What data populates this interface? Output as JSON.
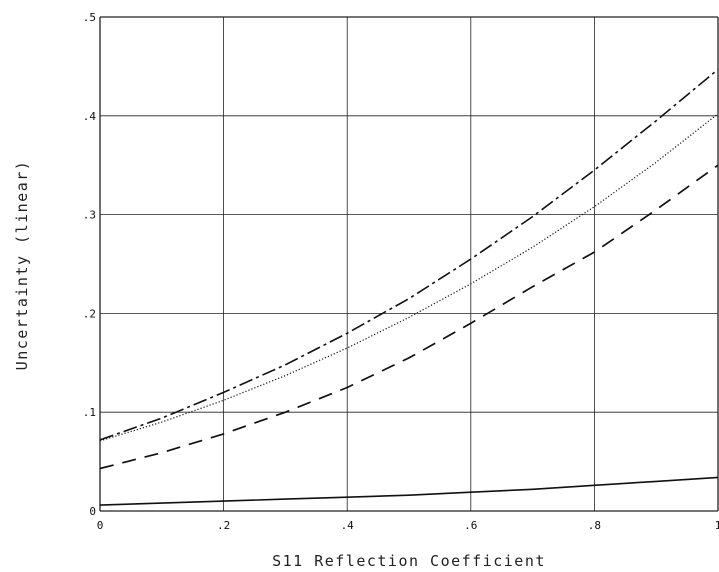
{
  "chart_data": {
    "type": "line",
    "title": "",
    "xlabel": "S11 Reflection Coefficient",
    "ylabel": "Uncertainty (linear)",
    "xlim": [
      0,
      1
    ],
    "ylim": [
      0,
      0.5
    ],
    "grid": true,
    "x_ticks": [
      "0",
      ".2",
      ".4",
      ".6",
      ".8",
      "1"
    ],
    "y_ticks": [
      "0",
      ".1",
      ".2",
      ".3",
      ".4",
      ".5"
    ],
    "x": [
      0,
      0.1,
      0.2,
      0.3,
      0.4,
      0.5,
      0.6,
      0.7,
      0.8,
      0.9,
      1.0
    ],
    "series": [
      {
        "style": "dashdot",
        "values": [
          0.072,
          0.094,
          0.12,
          0.148,
          0.18,
          0.215,
          0.255,
          0.298,
          0.345,
          0.395,
          0.447
        ]
      },
      {
        "style": "dotted",
        "values": [
          0.071,
          0.09,
          0.112,
          0.137,
          0.165,
          0.196,
          0.23,
          0.267,
          0.308,
          0.353,
          0.402
        ]
      },
      {
        "style": "dashed",
        "values": [
          0.043,
          0.059,
          0.078,
          0.1,
          0.125,
          0.155,
          0.19,
          0.227,
          0.262,
          0.305,
          0.35
        ]
      },
      {
        "style": "solid",
        "values": [
          0.006,
          0.008,
          0.01,
          0.012,
          0.014,
          0.016,
          0.019,
          0.022,
          0.026,
          0.03,
          0.034
        ]
      }
    ]
  }
}
